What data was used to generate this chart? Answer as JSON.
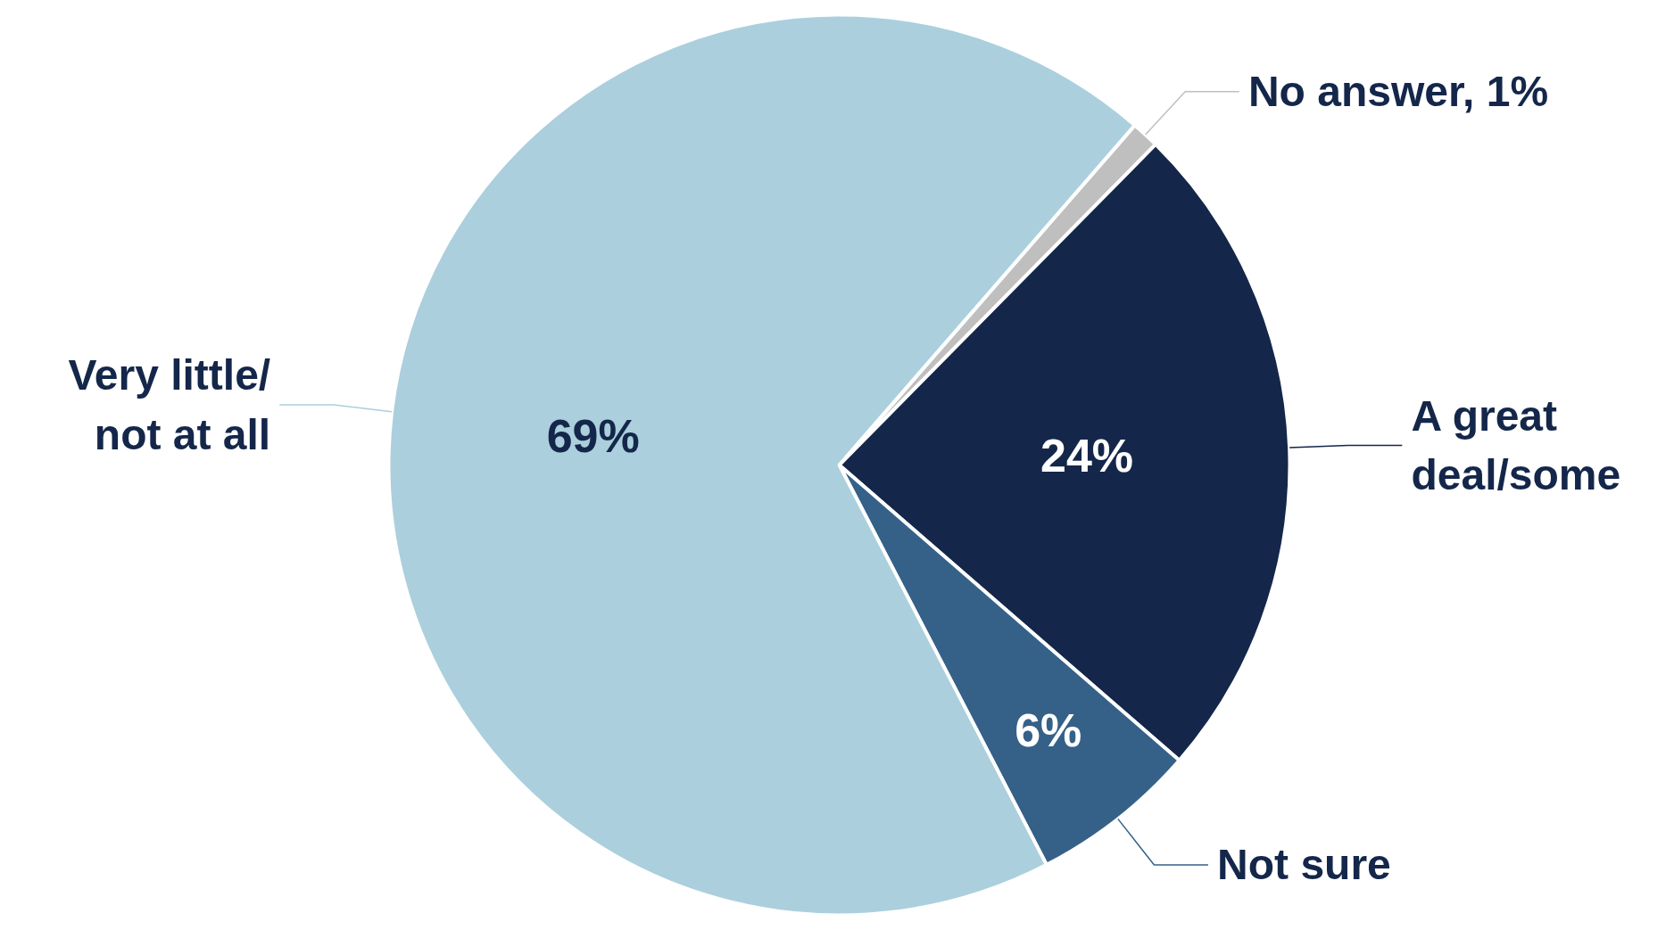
{
  "chart_data": {
    "type": "pie",
    "categories": [
      "No answer, 1%",
      "A great\ndeal/some",
      "Not sure",
      "Very little/\nnot at all"
    ],
    "values": [
      1,
      24,
      6,
      69
    ],
    "colors": [
      "#bfbfbf",
      "#14274a",
      "#356189",
      "#abcfdd"
    ],
    "value_labels": [
      null,
      "24%",
      "6%",
      "69%"
    ]
  }
}
